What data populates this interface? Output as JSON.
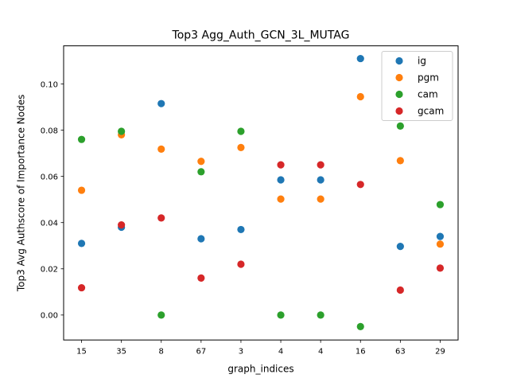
{
  "chart_data": {
    "type": "scatter",
    "title": "Top3 Agg_Auth_GCN_3L_MUTAG",
    "xlabel": "graph_indices",
    "ylabel": "Top3 Avg Authscore of Importance Nodes",
    "categories": [
      "15",
      "35",
      "8",
      "67",
      "3",
      "4",
      "4",
      "16",
      "63",
      "29"
    ],
    "ylim": [
      -0.0108,
      0.1165
    ],
    "yticks": [
      0.0,
      0.02,
      0.04,
      0.06,
      0.08,
      0.1
    ],
    "ytick_labels": [
      "0.00",
      "0.02",
      "0.04",
      "0.06",
      "0.08",
      "0.10"
    ],
    "grid": false,
    "legend_position": "top-right",
    "series": [
      {
        "name": "ig",
        "color": "#1f77b4",
        "values": [
          0.031,
          0.038,
          0.0915,
          0.033,
          0.037,
          0.0585,
          0.0585,
          0.111,
          0.0297,
          0.034
        ]
      },
      {
        "name": "pgm",
        "color": "#ff7f0e",
        "values": [
          0.054,
          0.078,
          0.0718,
          0.0665,
          0.0725,
          0.0502,
          0.0502,
          0.0945,
          0.0668,
          0.0307
        ]
      },
      {
        "name": "cam",
        "color": "#2ca02c",
        "values": [
          0.076,
          0.0795,
          0.0,
          0.062,
          0.0795,
          0.0,
          0.0,
          -0.005,
          0.0818,
          0.0478
        ]
      },
      {
        "name": "gcam",
        "color": "#d62728",
        "values": [
          0.0118,
          0.039,
          0.042,
          0.016,
          0.022,
          0.065,
          0.065,
          0.0565,
          0.0108,
          0.0203
        ]
      }
    ]
  }
}
